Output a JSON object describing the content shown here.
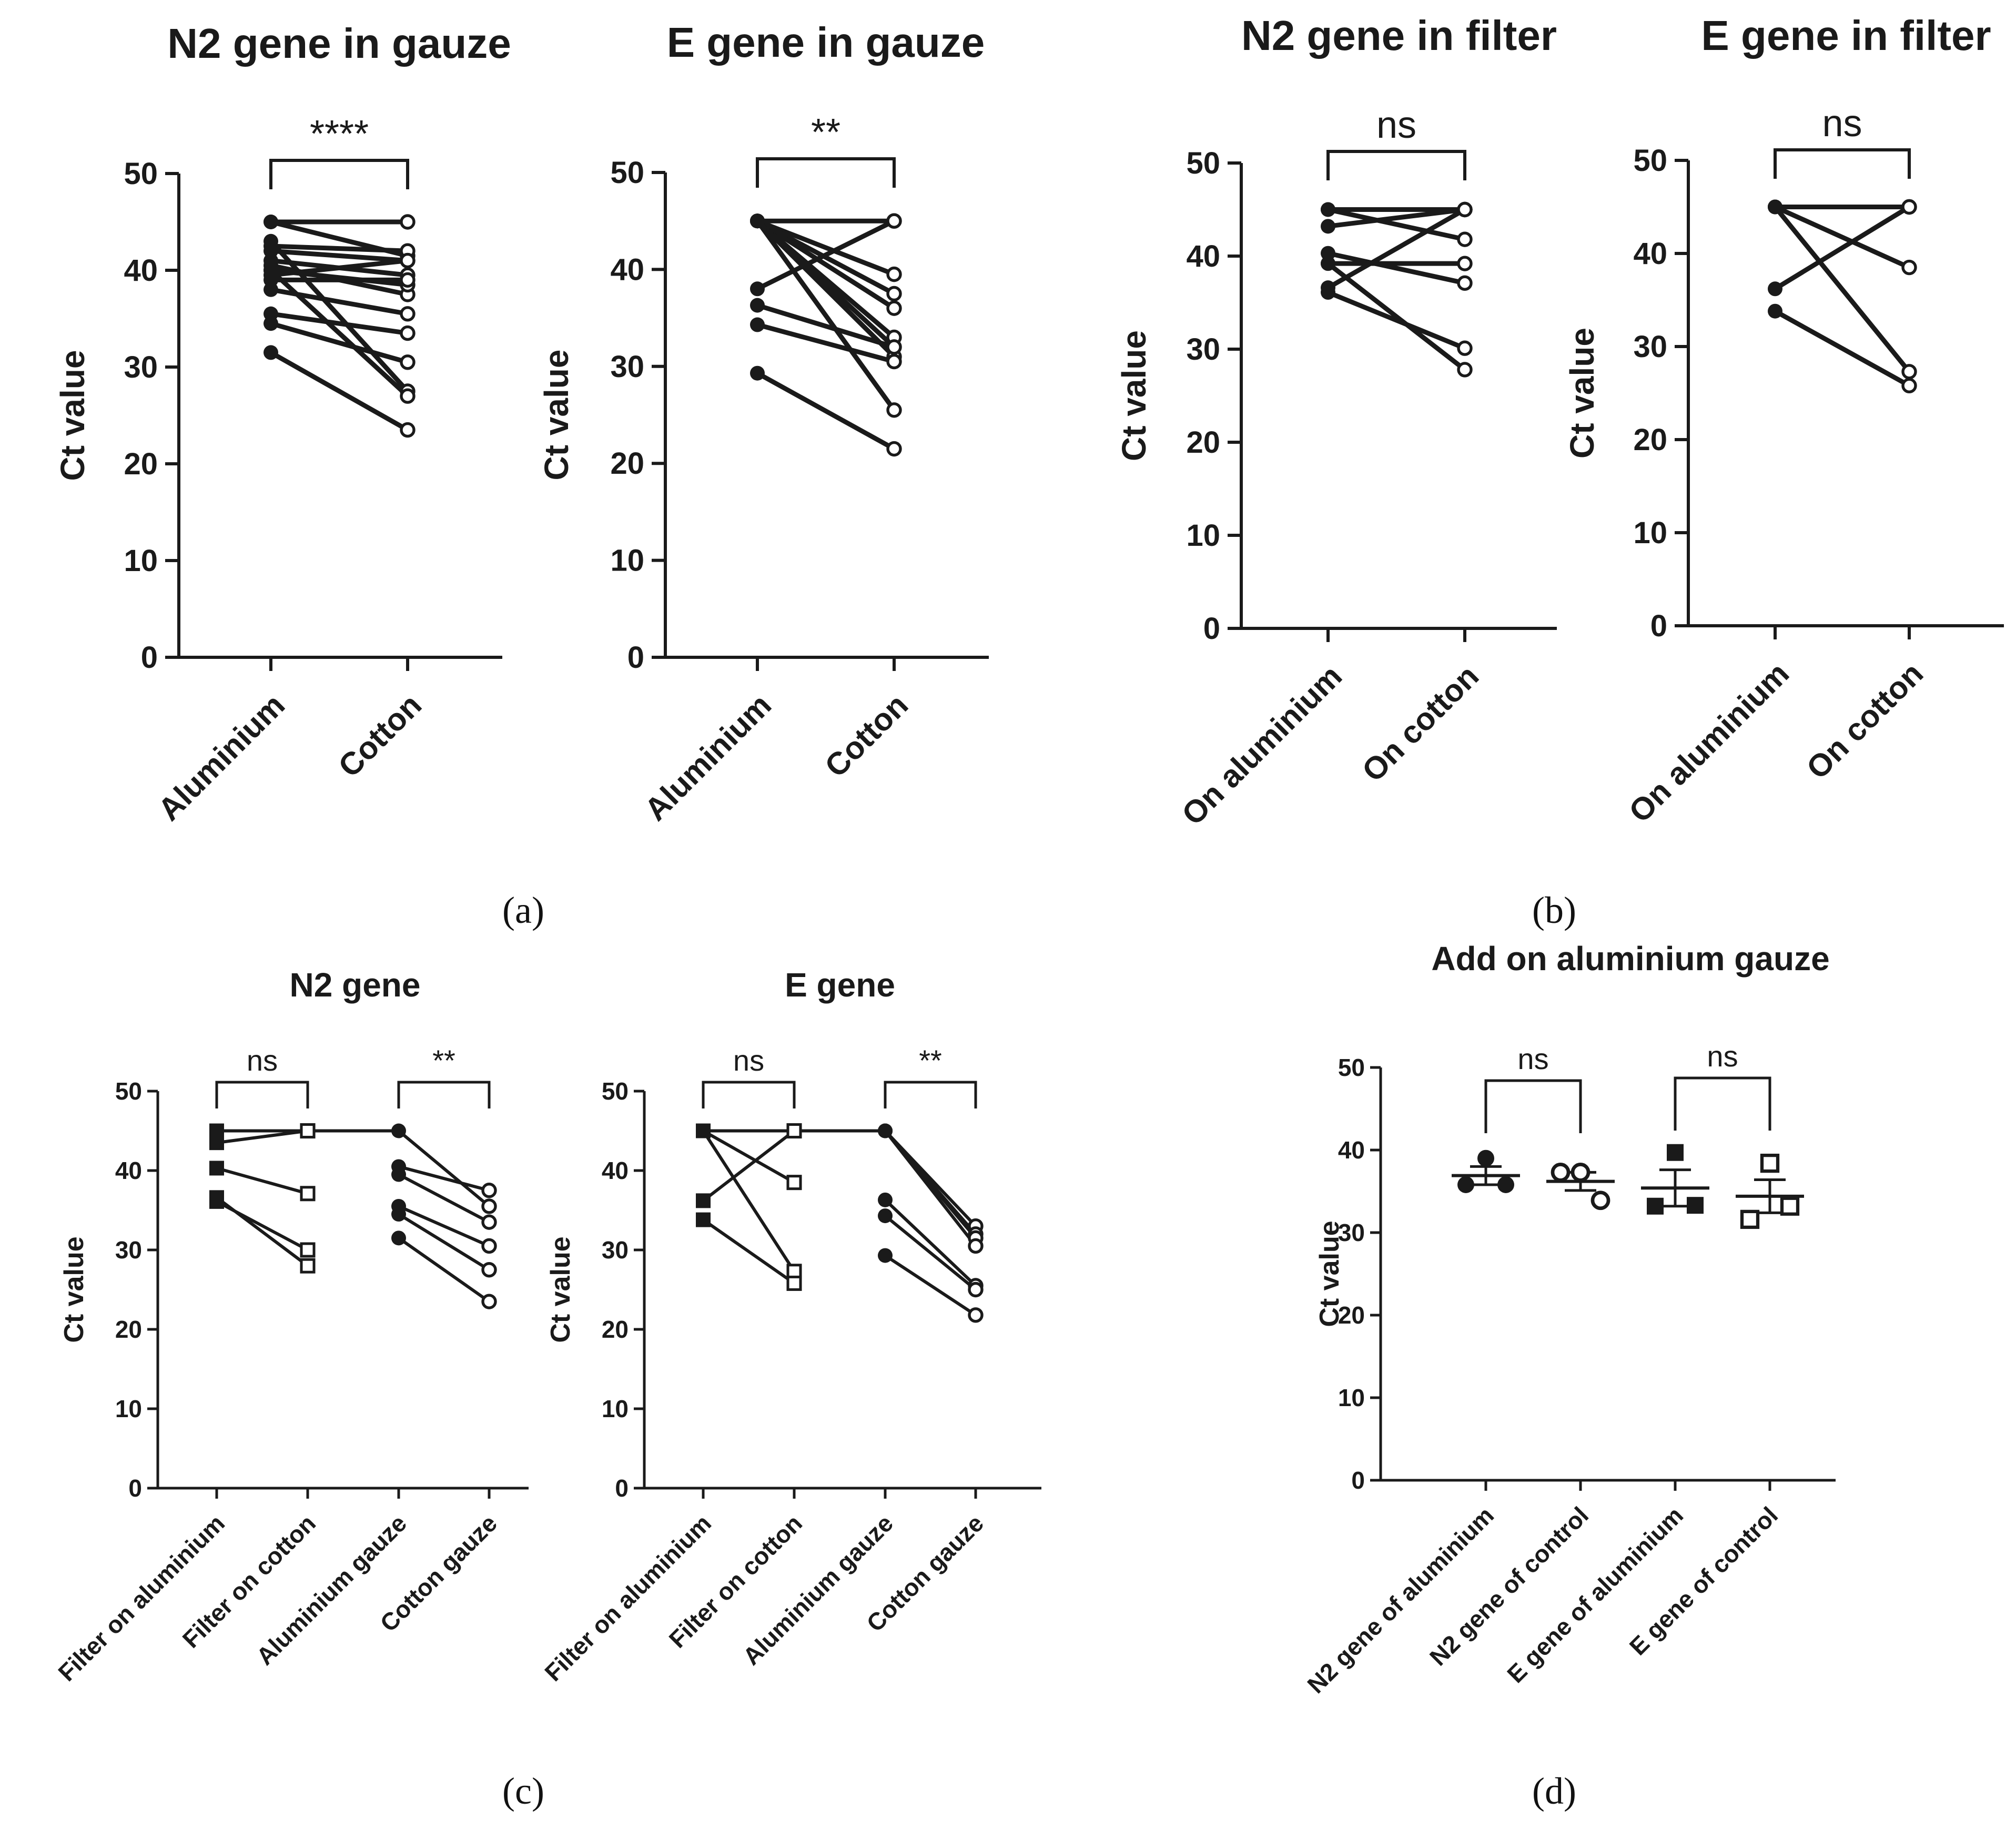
{
  "panel_labels": [
    "(a)",
    "(b)",
    "(c)",
    "(d)"
  ],
  "chart_data": [
    {
      "type": "line",
      "title": "N2 gene in gauze",
      "ylabel": "Ct value",
      "categories": [
        "Aluminium",
        "Cotton"
      ],
      "ylim": [
        0,
        50
      ],
      "yticks": [
        0,
        10,
        20,
        30,
        40,
        50
      ],
      "significance": "****",
      "pairs": [
        [
          45,
          45
        ],
        [
          45,
          41.5
        ],
        [
          42.5,
          42
        ],
        [
          42,
          41
        ],
        [
          41,
          39.5
        ],
        [
          40.5,
          37.5
        ],
        [
          40,
          38.5
        ],
        [
          39.5,
          41
        ],
        [
          39,
          39
        ],
        [
          38,
          35.5
        ],
        [
          35.5,
          33.5
        ],
        [
          34.5,
          30.5
        ],
        [
          43,
          27.5
        ],
        [
          40,
          27
        ],
        [
          31.5,
          23.5
        ]
      ]
    },
    {
      "type": "line",
      "title": "E gene in gauze",
      "ylabel": "Ct value",
      "categories": [
        "Aluminium",
        "Cotton"
      ],
      "ylim": [
        0,
        50
      ],
      "yticks": [
        0,
        10,
        20,
        30,
        40,
        50
      ],
      "significance": "**",
      "pairs": [
        [
          45,
          45
        ],
        [
          45,
          39.5
        ],
        [
          45,
          37.5
        ],
        [
          45,
          36
        ],
        [
          45,
          33
        ],
        [
          45,
          32
        ],
        [
          45,
          31
        ],
        [
          45,
          25.5
        ],
        [
          38,
          45
        ],
        [
          36.3,
          32
        ],
        [
          34.3,
          30.5
        ],
        [
          29.3,
          21.5
        ]
      ]
    },
    {
      "type": "line",
      "title": "N2 gene in filter",
      "ylabel": "Ct value",
      "categories": [
        "On aluminium",
        "On cotton"
      ],
      "ylim": [
        0,
        50
      ],
      "yticks": [
        0,
        10,
        20,
        30,
        40,
        50
      ],
      "significance": "ns",
      "pairs": [
        [
          45,
          45
        ],
        [
          45,
          41.8
        ],
        [
          43.2,
          45
        ],
        [
          40.3,
          37.1
        ],
        [
          39.2,
          39.2
        ],
        [
          36.6,
          45
        ],
        [
          36.1,
          30.1
        ],
        [
          39.2,
          27.8
        ]
      ]
    },
    {
      "type": "line",
      "title": "E gene in filter",
      "ylabel": "Ct value",
      "categories": [
        "On aluminium",
        "On cotton"
      ],
      "ylim": [
        0,
        50
      ],
      "yticks": [
        0,
        10,
        20,
        30,
        40,
        50
      ],
      "significance": "ns",
      "pairs": [
        [
          45,
          45
        ],
        [
          45,
          38.5
        ],
        [
          36.2,
          45
        ],
        [
          45,
          27.3
        ],
        [
          33.8,
          25.8
        ]
      ]
    },
    {
      "type": "line",
      "title": "N2 gene",
      "ylabel": "Ct value",
      "categories": [
        "Filter on aluminium",
        "Filter on cotton",
        "Aluminium gauze",
        "Cotton gauze"
      ],
      "ylim": [
        0,
        50
      ],
      "yticks": [
        0,
        10,
        20,
        30,
        40,
        50
      ],
      "significance": [
        "ns",
        "**"
      ],
      "filter_pairs": [
        [
          45,
          45
        ],
        [
          45,
          45
        ],
        [
          43.5,
          45
        ],
        [
          40.3,
          37.1
        ],
        [
          36.1,
          30
        ],
        [
          36.6,
          28
        ]
      ],
      "gauze_pairs": [
        [
          45,
          35.5
        ],
        [
          40.5,
          37.5
        ],
        [
          39.5,
          33.5
        ],
        [
          35.5,
          30.5
        ],
        [
          34.5,
          27.5
        ],
        [
          31.5,
          23.5
        ]
      ]
    },
    {
      "type": "line",
      "title": "E gene",
      "ylabel": "Ct value",
      "categories": [
        "Filter on aluminium",
        "Filter on cotton",
        "Aluminium gauze",
        "Cotton gauze"
      ],
      "ylim": [
        0,
        50
      ],
      "yticks": [
        0,
        10,
        20,
        30,
        40,
        50
      ],
      "significance": [
        "ns",
        "**"
      ],
      "filter_pairs": [
        [
          45,
          45
        ],
        [
          45,
          38.5
        ],
        [
          36.2,
          45
        ],
        [
          45,
          27.3
        ],
        [
          33.8,
          25.8
        ]
      ],
      "gauze_pairs": [
        [
          45,
          33
        ],
        [
          45,
          32
        ],
        [
          45,
          31.5
        ],
        [
          45,
          30.5
        ],
        [
          36.3,
          25.5
        ],
        [
          34.3,
          25
        ],
        [
          29.3,
          21.8
        ]
      ]
    },
    {
      "type": "scatter",
      "title": "Add on aluminium gauze",
      "ylabel": "Ct value",
      "categories": [
        "N2 gene of aluminium",
        "N2 gene of control",
        "E gene of aluminium",
        "E gene of control"
      ],
      "ylim": [
        0,
        50
      ],
      "yticks": [
        0,
        10,
        20,
        30,
        40,
        50
      ],
      "significance": [
        "ns",
        "ns"
      ],
      "groups": [
        {
          "points": [
            39,
            35.8,
            35.8
          ],
          "mean": 36.9,
          "sem": 1.1
        },
        {
          "points": [
            37.3,
            37.3,
            33.9
          ],
          "mean": 36.2,
          "sem": 1.1
        },
        {
          "points": [
            39.7,
            33.2,
            33.3
          ],
          "mean": 35.4,
          "sem": 2.2
        },
        {
          "points": [
            38.4,
            31.6,
            33.2
          ],
          "mean": 34.4,
          "sem": 2.0
        }
      ]
    }
  ]
}
